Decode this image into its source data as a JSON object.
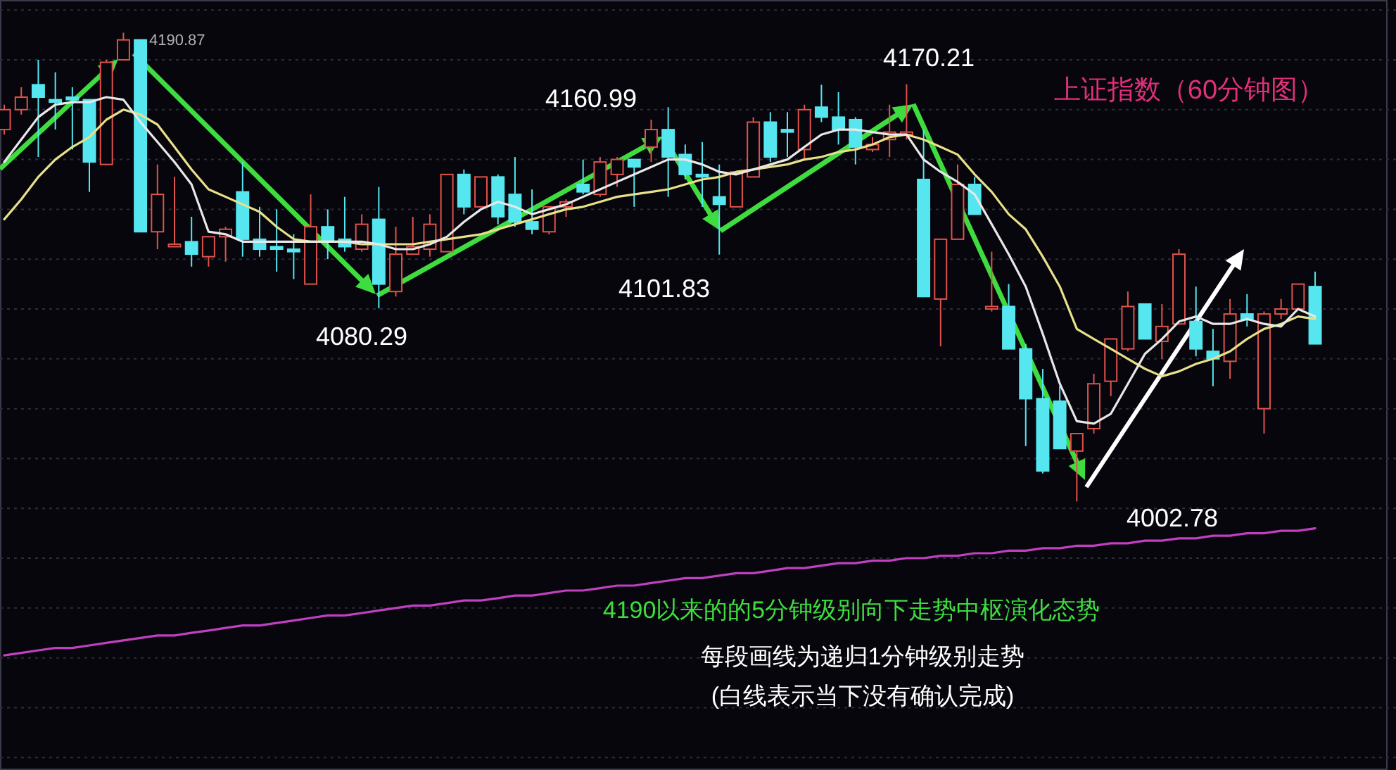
{
  "chart_data": {
    "type": "candlestick",
    "title": "上证指数（60分钟图）",
    "categories": [
      null,
      null,
      null,
      null,
      null,
      null,
      null,
      null,
      null,
      null,
      null,
      null,
      null,
      null,
      null,
      null,
      null,
      null,
      null,
      null,
      null,
      null,
      null,
      null,
      null,
      null,
      null,
      null,
      null,
      null,
      null,
      null,
      null,
      null,
      null,
      null,
      null,
      null,
      null,
      null,
      null,
      null,
      null,
      null,
      null,
      null,
      null,
      null,
      null,
      null,
      null,
      null,
      null,
      null,
      null,
      null,
      null,
      null,
      null,
      null,
      null,
      null,
      null,
      null,
      null,
      null,
      null,
      null,
      null,
      null,
      null,
      null,
      null,
      null,
      null,
      null,
      null,
      null
    ],
    "ohlc": [
      [
        4152,
        4162,
        4150,
        4160
      ],
      [
        4160,
        4169,
        4158,
        4165
      ],
      [
        4170,
        4180,
        4141,
        4165
      ],
      [
        4164,
        4175,
        4152,
        4163
      ],
      [
        4165,
        4169,
        4144,
        4164
      ],
      [
        4164,
        4164,
        4127,
        4139
      ],
      [
        4138,
        4180,
        4138,
        4179
      ],
      [
        4180,
        4190.87,
        4180,
        4188
      ],
      [
        4188,
        4188,
        4111,
        4111
      ],
      [
        4111,
        4138,
        4104,
        4126
      ],
      [
        4105,
        4133,
        4105,
        4106
      ],
      [
        4107,
        4117,
        4097,
        4102
      ],
      [
        4101,
        4109,
        4097,
        4109
      ],
      [
        4109,
        4113,
        4099,
        4112
      ],
      [
        4127,
        4139,
        4101,
        4108
      ],
      [
        4108,
        4121,
        4101,
        4104
      ],
      [
        4105,
        4120,
        4095,
        4104
      ],
      [
        4104,
        4110,
        4092,
        4103
      ],
      [
        4090,
        4126,
        4090,
        4113
      ],
      [
        4113,
        4120,
        4100,
        4107
      ],
      [
        4108,
        4125,
        4103,
        4105
      ],
      [
        4104,
        4118,
        4103,
        4114
      ],
      [
        4116,
        4129,
        4080.29,
        4090
      ],
      [
        4087,
        4113,
        4085,
        4102
      ],
      [
        4102,
        4117,
        4102,
        4105
      ],
      [
        4104,
        4118,
        4101,
        4114
      ],
      [
        4103,
        4134,
        4103,
        4134
      ],
      [
        4134,
        4136,
        4118,
        4121
      ],
      [
        4121,
        4133,
        4121,
        4133
      ],
      [
        4133,
        4134,
        4114,
        4117
      ],
      [
        4126,
        4141,
        4113,
        4115
      ],
      [
        4115,
        4128,
        4110,
        4112
      ],
      [
        4111,
        4121,
        4110,
        4121
      ],
      [
        4121,
        4124,
        4117,
        4123
      ],
      [
        4130,
        4140,
        4126,
        4127
      ],
      [
        4126,
        4141,
        4125,
        4139
      ],
      [
        4134,
        4141,
        4129,
        4140
      ],
      [
        4140,
        4140,
        4121,
        4137
      ],
      [
        4145,
        4156,
        4139,
        4152
      ],
      [
        4152,
        4160.99,
        4125,
        4141
      ],
      [
        4142,
        4146,
        4132,
        4134
      ],
      [
        4134,
        4147,
        4121,
        4133
      ],
      [
        4125,
        4138,
        4101.83,
        4122
      ],
      [
        4121,
        4135,
        4121,
        4135
      ],
      [
        4133,
        4157,
        4133,
        4155
      ],
      [
        4155,
        4159,
        4139,
        4141
      ],
      [
        4152,
        4159,
        4141,
        4151
      ],
      [
        4144,
        4162,
        4140,
        4160
      ],
      [
        4161,
        4170,
        4155,
        4157
      ],
      [
        4157,
        4167,
        4146,
        4152
      ],
      [
        4156,
        4157,
        4138,
        4145
      ],
      [
        4144,
        4149,
        4143,
        4146
      ],
      [
        4148,
        4162,
        4141,
        4151
      ],
      [
        4150,
        4170.21,
        4148,
        4151
      ],
      [
        4132,
        4152,
        4085,
        4085
      ],
      [
        4084,
        4108,
        4065,
        4108
      ],
      [
        4108,
        4138,
        4108,
        4130
      ],
      [
        4130,
        4133,
        4118,
        4118
      ],
      [
        4080,
        4103,
        4079,
        4081
      ],
      [
        4081,
        4090,
        4064,
        4064
      ],
      [
        4064,
        4066,
        4025,
        4044
      ],
      [
        4044,
        4056,
        4014,
        4015
      ],
      [
        4043,
        4049,
        4024,
        4024
      ],
      [
        4023,
        4030,
        4002.78,
        4030
      ],
      [
        4032,
        4054,
        4030,
        4050
      ],
      [
        4051,
        4068,
        4045,
        4068
      ],
      [
        4064,
        4087,
        4063,
        4081
      ],
      [
        4082,
        4082,
        4068,
        4068
      ],
      [
        4067,
        4082,
        4060,
        4073
      ],
      [
        4074,
        4104,
        4074,
        4102
      ],
      [
        4075,
        4089,
        4061,
        4064
      ],
      [
        4063,
        4072,
        4049,
        4060
      ],
      [
        4059,
        4084,
        4052,
        4078
      ],
      [
        4078,
        4086,
        4073,
        4076
      ],
      [
        4040,
        4079,
        4030,
        4078
      ],
      [
        4078,
        4084,
        4076,
        4080
      ],
      [
        4080,
        4090,
        4080,
        4090
      ],
      [
        4089,
        4095,
        4066,
        4066
      ]
    ],
    "colors": [
      "#e0524c",
      "#e0524c",
      "#56e6ef",
      "#56e6ef",
      "#56e6ef",
      "#56e6ef",
      "#e0524c",
      "#e0524c",
      "#56e6ef",
      "#e0524c",
      "#e0524c",
      "#56e6ef",
      "#e0524c",
      "#e0524c",
      "#56e6ef",
      "#56e6ef",
      "#56e6ef",
      "#56e6ef",
      "#e0524c",
      "#56e6ef",
      "#56e6ef",
      "#e0524c",
      "#56e6ef",
      "#e0524c",
      "#e0524c",
      "#e0524c",
      "#e0524c",
      "#56e6ef",
      "#e0524c",
      "#56e6ef",
      "#56e6ef",
      "#56e6ef",
      "#e0524c",
      "#e0524c",
      "#56e6ef",
      "#e0524c",
      "#e0524c",
      "#56e6ef",
      "#e0524c",
      "#56e6ef",
      "#56e6ef",
      "#56e6ef",
      "#56e6ef",
      "#e0524c",
      "#e0524c",
      "#56e6ef",
      "#56e6ef",
      "#e0524c",
      "#56e6ef",
      "#56e6ef",
      "#56e6ef",
      "#e0524c",
      "#e0524c",
      "#e0524c",
      "#56e6ef",
      "#e0524c",
      "#e0524c",
      "#56e6ef",
      "#e0524c",
      "#56e6ef",
      "#56e6ef",
      "#56e6ef",
      "#56e6ef",
      "#e0524c",
      "#e0524c",
      "#e0524c",
      "#e0524c",
      "#56e6ef",
      "#e0524c",
      "#e0524c",
      "#56e6ef",
      "#56e6ef",
      "#e0524c",
      "#56e6ef",
      "#e0524c",
      "#e0524c",
      "#e0524c",
      "#56e6ef"
    ],
    "series": [
      {
        "type": "line",
        "color": "#c040c0",
        "values": [
          3941,
          3942,
          3943,
          3944,
          3944,
          3945,
          3946,
          3947,
          3948,
          3949,
          3949,
          3950,
          3951,
          3952,
          3953,
          3953,
          3954,
          3955,
          3956,
          3957,
          3957,
          3958,
          3959,
          3960,
          3961,
          3961,
          3962,
          3963,
          3963,
          3964,
          3965,
          3965,
          3966,
          3967,
          3967,
          3968,
          3969,
          3969,
          3970,
          3971,
          3972,
          3972,
          3973,
          3974,
          3974,
          3975,
          3976,
          3976,
          3977,
          3978,
          3978,
          3979,
          3979,
          3980,
          3980,
          3981,
          3981,
          3982,
          3982,
          3983,
          3983,
          3984,
          3984,
          3985,
          3985,
          3986,
          3986,
          3987,
          3987,
          3988,
          3988,
          3989,
          3989,
          3990,
          3990,
          3991,
          3991,
          3992
        ]
      },
      {
        "type": "line",
        "color": "#e8e08a",
        "values": [
          4116,
          4124,
          4133,
          4140,
          4145,
          4149,
          4156,
          4160,
          4158,
          4154,
          4145,
          4136,
          4128,
          4125,
          4122,
          4119,
          4113,
          4108,
          4107,
          4107,
          4107,
          4106,
          4106,
          4106,
          4106,
          4107,
          4108,
          4109,
          4110,
          4112,
          4114,
          4116,
          4118,
          4120,
          4121,
          4123,
          4125,
          4126,
          4127,
          4128,
          4130,
          4132,
          4133,
          4135,
          4136,
          4137,
          4138,
          4140,
          4141,
          4143,
          4144,
          4146,
          4149,
          4150,
          4148,
          4145,
          4142,
          4134,
          4127,
          4118,
          4112,
          4101,
          4089,
          4072,
          4068,
          4064,
          4060,
          4056,
          4053,
          4055,
          4058,
          4060,
          4063,
          4068,
          4072,
          4074,
          4077,
          4076
        ]
      },
      {
        "type": "line",
        "color": "#e8e8e8",
        "values": [
          4139,
          4148,
          4157,
          4162,
          4163,
          4163,
          4165,
          4164,
          4155,
          4147,
          4139,
          4130,
          4111,
          4110,
          4107,
          4107,
          4107,
          4107,
          4107,
          4107,
          4107,
          4107,
          4106,
          4104,
          4104,
          4106,
          4109,
          4115,
          4120,
          4123,
          4121,
          4118,
          4120,
          4122,
          4125,
          4128,
          4131,
          4134,
          4137,
          4140,
          4140,
          4138,
          4135,
          4134,
          4136,
          4138,
          4140,
          4145,
          4150,
          4152,
          4152,
          4151,
          4150,
          4150,
          4140,
          4135,
          4131,
          4126,
          4114,
          4102,
          4089,
          4070,
          4050,
          4035,
          4034,
          4038,
          4050,
          4062,
          4068,
          4075,
          4077,
          4074,
          4074,
          4076,
          4074,
          4073,
          4080,
          4077
        ]
      }
    ],
    "yticks": [
      {
        "value": 3900,
        "label": null
      },
      {
        "value": 3920,
        "label": null
      },
      {
        "value": 3940,
        "label": null
      },
      {
        "value": 3960,
        "label": null
      },
      {
        "value": 3980,
        "label": null
      },
      {
        "value": 4000,
        "label": null
      },
      {
        "value": 4020,
        "label": null
      },
      {
        "value": 4040,
        "label": null
      },
      {
        "value": 4060,
        "label": null
      },
      {
        "value": 4080,
        "label": null
      },
      {
        "value": 4100,
        "label": null
      },
      {
        "value": 4120,
        "label": null
      },
      {
        "value": 4140,
        "label": null
      },
      {
        "value": 4160,
        "label": null
      },
      {
        "value": 4180,
        "label": null
      },
      {
        "value": 4200,
        "label": null
      }
    ],
    "grid": "y",
    "ylim": [
      3895,
      4204
    ],
    "annotations": [
      "4190.87",
      "4160.99",
      "4170.21",
      "4101.83",
      "4080.29",
      "4002.78",
      "4190以来的的5分钟级别向下走势中枢演化态势",
      "每段画线为递归1分钟级别走势",
      "(白线表示当下没有确认完成)"
    ]
  }
}
